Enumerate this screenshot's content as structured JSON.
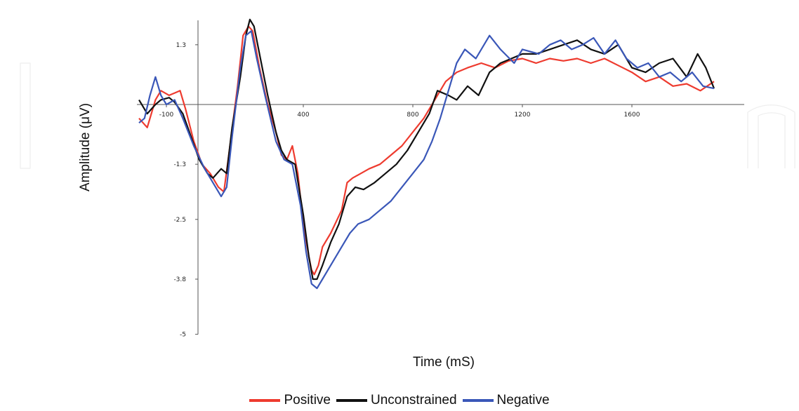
{
  "chart_data": {
    "type": "line",
    "xlabel": "Time (mS)",
    "ylabel": "Amplitude (μV)",
    "xlim": [
      -200,
      1900
    ],
    "ylim": [
      -5,
      1.8
    ],
    "x_ticks": [
      -100,
      400,
      800,
      1200,
      1600
    ],
    "x_tick_labels": [
      "-100",
      "400",
      "800",
      "1200",
      "1600"
    ],
    "y_ticks": [
      1.3,
      -1.3,
      -2.5,
      -3.8,
      -5
    ],
    "y_tick_labels": [
      "1.3",
      "-1.3",
      "-2.5",
      "-3.8",
      "-5"
    ],
    "legend_position": "bottom-center",
    "grid": false,
    "series": [
      {
        "name": "Positive",
        "color": "#ee3b2f",
        "points": [
          [
            -200,
            -0.3
          ],
          [
            -170,
            -0.5
          ],
          [
            -140,
            0.1
          ],
          [
            -120,
            0.3
          ],
          [
            -90,
            0.2
          ],
          [
            -70,
            0.25
          ],
          [
            -50,
            0.3
          ],
          [
            -30,
            -0.1
          ],
          [
            0,
            -0.8
          ],
          [
            30,
            -1.3
          ],
          [
            60,
            -1.5
          ],
          [
            90,
            -1.8
          ],
          [
            110,
            -1.9
          ],
          [
            130,
            -1.0
          ],
          [
            160,
            0.4
          ],
          [
            180,
            1.5
          ],
          [
            200,
            1.7
          ],
          [
            215,
            1.6
          ],
          [
            240,
            0.8
          ],
          [
            270,
            0.0
          ],
          [
            300,
            -0.6
          ],
          [
            320,
            -1.1
          ],
          [
            340,
            -1.2
          ],
          [
            360,
            -0.9
          ],
          [
            380,
            -1.5
          ],
          [
            400,
            -2.6
          ],
          [
            420,
            -3.3
          ],
          [
            430,
            -3.6
          ],
          [
            440,
            -3.7
          ],
          [
            455,
            -3.5
          ],
          [
            470,
            -3.1
          ],
          [
            500,
            -2.8
          ],
          [
            540,
            -2.3
          ],
          [
            560,
            -1.7
          ],
          [
            580,
            -1.6
          ],
          [
            610,
            -1.5
          ],
          [
            640,
            -1.4
          ],
          [
            680,
            -1.3
          ],
          [
            720,
            -1.1
          ],
          [
            760,
            -0.9
          ],
          [
            800,
            -0.6
          ],
          [
            840,
            -0.3
          ],
          [
            880,
            0.1
          ],
          [
            920,
            0.5
          ],
          [
            960,
            0.7
          ],
          [
            1000,
            0.8
          ],
          [
            1050,
            0.9
          ],
          [
            1100,
            0.8
          ],
          [
            1150,
            0.95
          ],
          [
            1200,
            1.0
          ],
          [
            1250,
            0.9
          ],
          [
            1300,
            1.0
          ],
          [
            1350,
            0.95
          ],
          [
            1400,
            1.0
          ],
          [
            1450,
            0.9
          ],
          [
            1500,
            1.0
          ],
          [
            1550,
            0.85
          ],
          [
            1600,
            0.7
          ],
          [
            1650,
            0.5
          ],
          [
            1700,
            0.6
          ],
          [
            1750,
            0.4
          ],
          [
            1800,
            0.45
          ],
          [
            1850,
            0.3
          ],
          [
            1900,
            0.5
          ]
        ]
      },
      {
        "name": "Unconstrained",
        "color": "#111111",
        "points": [
          [
            -200,
            0.1
          ],
          [
            -170,
            -0.2
          ],
          [
            -140,
            0.0
          ],
          [
            -120,
            0.1
          ],
          [
            -90,
            0.15
          ],
          [
            -70,
            0.05
          ],
          [
            -40,
            -0.2
          ],
          [
            -10,
            -0.7
          ],
          [
            20,
            -1.2
          ],
          [
            50,
            -1.5
          ],
          [
            70,
            -1.6
          ],
          [
            100,
            -1.4
          ],
          [
            120,
            -1.5
          ],
          [
            140,
            -0.5
          ],
          [
            170,
            0.6
          ],
          [
            190,
            1.5
          ],
          [
            205,
            1.85
          ],
          [
            220,
            1.7
          ],
          [
            240,
            1.1
          ],
          [
            270,
            0.2
          ],
          [
            300,
            -0.6
          ],
          [
            320,
            -1.0
          ],
          [
            340,
            -1.2
          ],
          [
            370,
            -1.3
          ],
          [
            400,
            -2.4
          ],
          [
            420,
            -3.3
          ],
          [
            435,
            -3.8
          ],
          [
            450,
            -3.8
          ],
          [
            470,
            -3.5
          ],
          [
            500,
            -3.0
          ],
          [
            530,
            -2.6
          ],
          [
            560,
            -2.0
          ],
          [
            590,
            -1.8
          ],
          [
            620,
            -1.85
          ],
          [
            660,
            -1.7
          ],
          [
            700,
            -1.5
          ],
          [
            740,
            -1.3
          ],
          [
            780,
            -1.0
          ],
          [
            820,
            -0.6
          ],
          [
            860,
            -0.2
          ],
          [
            890,
            0.3
          ],
          [
            930,
            0.2
          ],
          [
            960,
            0.1
          ],
          [
            1000,
            0.4
          ],
          [
            1040,
            0.2
          ],
          [
            1080,
            0.7
          ],
          [
            1120,
            0.9
          ],
          [
            1160,
            1.0
          ],
          [
            1200,
            1.1
          ],
          [
            1250,
            1.1
          ],
          [
            1300,
            1.2
          ],
          [
            1350,
            1.3
          ],
          [
            1400,
            1.4
          ],
          [
            1450,
            1.2
          ],
          [
            1500,
            1.1
          ],
          [
            1550,
            1.3
          ],
          [
            1600,
            0.8
          ],
          [
            1650,
            0.7
          ],
          [
            1700,
            0.9
          ],
          [
            1750,
            1.0
          ],
          [
            1800,
            0.6
          ],
          [
            1840,
            1.1
          ],
          [
            1870,
            0.8
          ],
          [
            1900,
            0.35
          ]
        ]
      },
      {
        "name": "Negative",
        "color": "#3a57b8",
        "points": [
          [
            -200,
            -0.4
          ],
          [
            -180,
            -0.3
          ],
          [
            -160,
            0.2
          ],
          [
            -140,
            0.6
          ],
          [
            -120,
            0.2
          ],
          [
            -100,
            0.0
          ],
          [
            -70,
            0.1
          ],
          [
            -40,
            -0.3
          ],
          [
            0,
            -0.9
          ],
          [
            40,
            -1.4
          ],
          [
            70,
            -1.7
          ],
          [
            100,
            -2.0
          ],
          [
            120,
            -1.8
          ],
          [
            140,
            -0.7
          ],
          [
            170,
            0.8
          ],
          [
            190,
            1.5
          ],
          [
            210,
            1.6
          ],
          [
            230,
            1.0
          ],
          [
            260,
            0.2
          ],
          [
            300,
            -0.8
          ],
          [
            330,
            -1.2
          ],
          [
            360,
            -1.3
          ],
          [
            390,
            -2.2
          ],
          [
            410,
            -3.2
          ],
          [
            430,
            -3.9
          ],
          [
            450,
            -4.0
          ],
          [
            470,
            -3.8
          ],
          [
            500,
            -3.5
          ],
          [
            540,
            -3.1
          ],
          [
            570,
            -2.8
          ],
          [
            600,
            -2.6
          ],
          [
            640,
            -2.5
          ],
          [
            680,
            -2.3
          ],
          [
            720,
            -2.1
          ],
          [
            760,
            -1.8
          ],
          [
            800,
            -1.5
          ],
          [
            840,
            -1.2
          ],
          [
            870,
            -0.8
          ],
          [
            900,
            -0.3
          ],
          [
            930,
            0.3
          ],
          [
            960,
            0.9
          ],
          [
            990,
            1.2
          ],
          [
            1030,
            1.0
          ],
          [
            1080,
            1.5
          ],
          [
            1120,
            1.2
          ],
          [
            1170,
            0.9
          ],
          [
            1200,
            1.2
          ],
          [
            1260,
            1.1
          ],
          [
            1300,
            1.3
          ],
          [
            1340,
            1.4
          ],
          [
            1380,
            1.2
          ],
          [
            1420,
            1.3
          ],
          [
            1460,
            1.45
          ],
          [
            1500,
            1.1
          ],
          [
            1540,
            1.4
          ],
          [
            1580,
            1.0
          ],
          [
            1620,
            0.8
          ],
          [
            1660,
            0.9
          ],
          [
            1700,
            0.6
          ],
          [
            1740,
            0.7
          ],
          [
            1780,
            0.5
          ],
          [
            1820,
            0.7
          ],
          [
            1860,
            0.4
          ],
          [
            1900,
            0.35
          ]
        ]
      }
    ]
  }
}
